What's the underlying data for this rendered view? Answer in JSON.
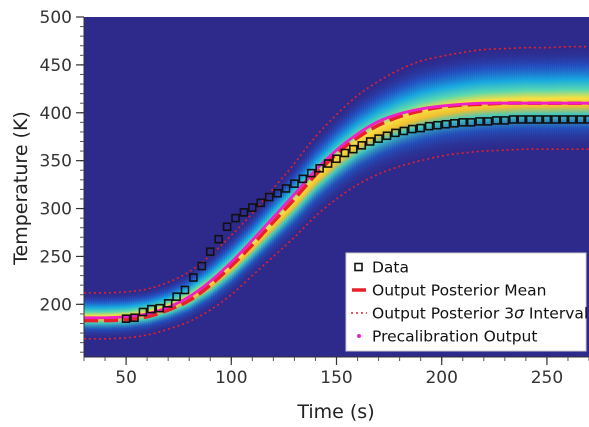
{
  "chart_data": {
    "type": "line",
    "xlabel": "Time (s)",
    "ylabel": "Temperature (K)",
    "xlim": [
      30,
      270
    ],
    "ylim": [
      145,
      500
    ],
    "x_ticks": [
      50,
      100,
      150,
      200,
      250
    ],
    "y_ticks": [
      200,
      250,
      300,
      350,
      400,
      450,
      500
    ],
    "background_color": "#2e2a8c",
    "legend_position": "bottom-right",
    "legend": [
      {
        "label": "Data",
        "marker": "square-open",
        "color": "#111111"
      },
      {
        "label": "Output Posterior Mean",
        "style": "dashed",
        "color": "#e8202a"
      },
      {
        "label_prefix": "Output Posterior 3",
        "label_symbol": "σ",
        "label_suffix": " Interval",
        "style": "dotted",
        "color": "#e8202a"
      },
      {
        "label": "Precalibration Output",
        "style": "solid",
        "color": "#f020c8"
      }
    ],
    "series": [
      {
        "name": "Data",
        "style": "markers",
        "color": "#111111",
        "x": [
          50,
          54,
          58,
          62,
          66,
          70,
          74,
          78,
          82,
          86,
          90,
          94,
          98,
          102,
          106,
          110,
          114,
          118,
          122,
          126,
          130,
          134,
          138,
          142,
          146,
          150,
          154,
          158,
          162,
          166,
          170,
          174,
          178,
          182,
          186,
          190,
          194,
          198,
          202,
          206,
          210,
          214,
          218,
          222,
          226,
          230,
          234,
          238,
          242,
          246,
          250,
          254,
          258,
          262,
          266,
          270
        ],
        "y": [
          185,
          186,
          192,
          195,
          196,
          201,
          208,
          215,
          228,
          240,
          255,
          268,
          281,
          290,
          296,
          301,
          306,
          312,
          316,
          321,
          326,
          331,
          337,
          342,
          347,
          352,
          358,
          362,
          366,
          370,
          373,
          376,
          379,
          381,
          383,
          384,
          386,
          387,
          388,
          389,
          390,
          390,
          391,
          391,
          392,
          392,
          393,
          393,
          393,
          393,
          393,
          393,
          393,
          393,
          393,
          393
        ]
      },
      {
        "name": "Output Posterior Mean",
        "style": "dashed",
        "color": "#e8202a",
        "x": [
          30,
          40,
          50,
          60,
          70,
          80,
          90,
          100,
          110,
          120,
          130,
          140,
          150,
          160,
          170,
          180,
          190,
          200,
          210,
          220,
          230,
          240,
          250,
          260,
          270
        ],
        "y": [
          183,
          183,
          184,
          187,
          194,
          204,
          220,
          240,
          262,
          286,
          310,
          335,
          357,
          374,
          387,
          396,
          402,
          406,
          408,
          409,
          410,
          410,
          410,
          410,
          410
        ]
      },
      {
        "name": "Output Posterior 3σ Upper",
        "style": "dotted",
        "color": "#e8202a",
        "x": [
          30,
          40,
          50,
          60,
          70,
          80,
          90,
          100,
          110,
          120,
          130,
          140,
          150,
          160,
          170,
          180,
          190,
          200,
          210,
          220,
          230,
          240,
          250,
          260,
          270
        ],
        "y": [
          212,
          212,
          213,
          216,
          223,
          234,
          251,
          272,
          295,
          321,
          347,
          375,
          398,
          418,
          433,
          445,
          454,
          459,
          463,
          466,
          467,
          468,
          468,
          469,
          469
        ]
      },
      {
        "name": "Output Posterior 3σ Lower",
        "style": "dotted",
        "color": "#e8202a",
        "x": [
          30,
          40,
          50,
          60,
          70,
          80,
          90,
          100,
          110,
          120,
          130,
          140,
          150,
          160,
          170,
          180,
          190,
          200,
          210,
          220,
          230,
          240,
          250,
          260,
          270
        ],
        "y": [
          164,
          164,
          165,
          168,
          174,
          182,
          194,
          210,
          230,
          250,
          270,
          292,
          310,
          325,
          336,
          344,
          350,
          355,
          358,
          360,
          361,
          362,
          362,
          362,
          362
        ]
      },
      {
        "name": "Precalibration Output",
        "style": "solid",
        "color": "#f020c8",
        "x": [
          30,
          40,
          50,
          60,
          70,
          80,
          90,
          100,
          110,
          120,
          130,
          140,
          150,
          160,
          170,
          180,
          190,
          200,
          210,
          220,
          230,
          240,
          250,
          260,
          270
        ],
        "y": [
          186,
          186,
          187,
          190,
          197,
          208,
          224,
          244,
          267,
          291,
          315,
          340,
          361,
          378,
          391,
          399,
          404,
          407,
          409,
          410,
          410,
          410,
          410,
          410,
          410
        ]
      }
    ]
  }
}
